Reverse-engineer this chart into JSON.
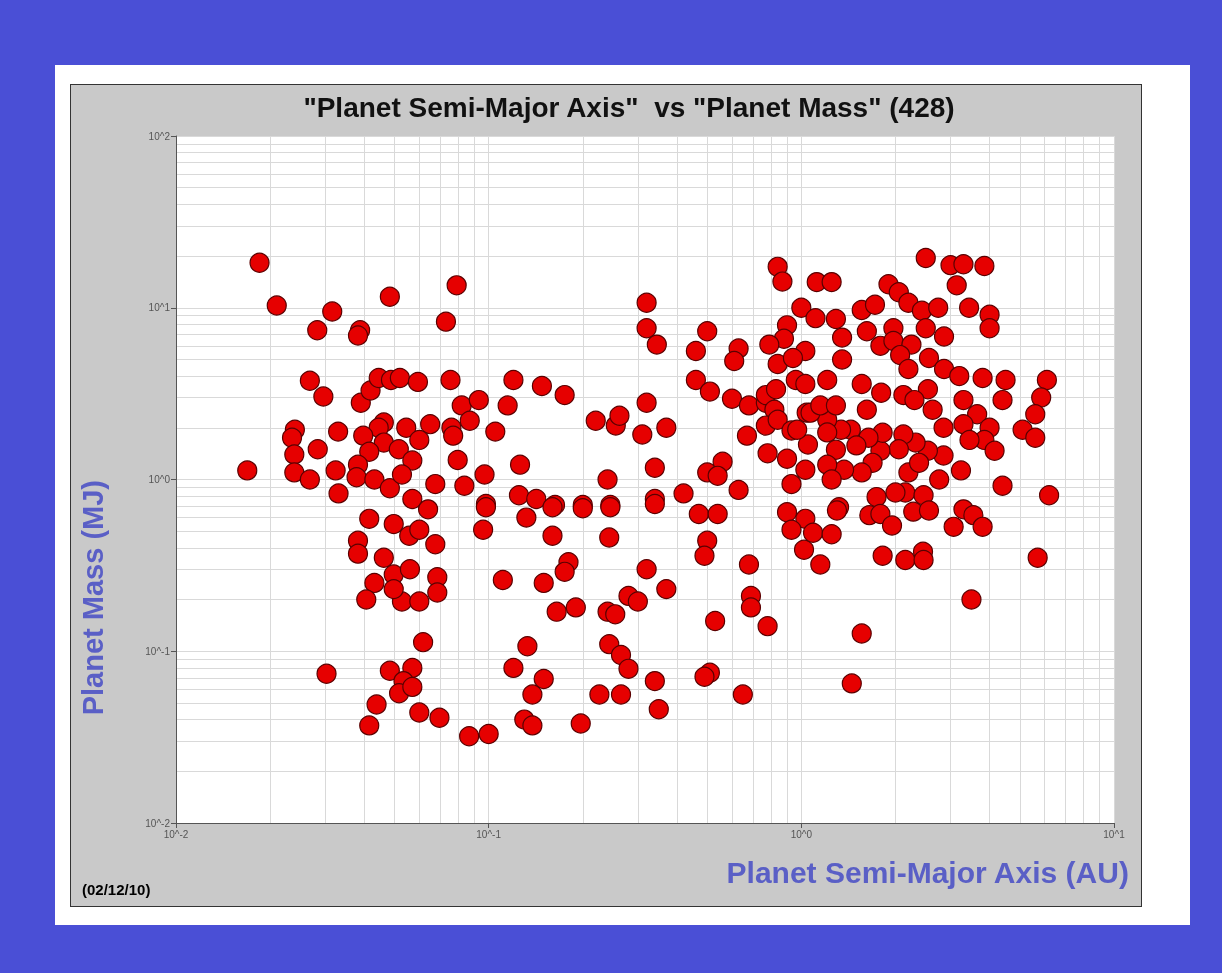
{
  "chart_data": {
    "type": "scatter",
    "title": "\"Planet Semi-Major Axis\"  vs \"Planet Mass\" (428)",
    "xlabel": "Planet Semi-Major Axis (AU)",
    "ylabel": "Planet Mass (MJ)",
    "annotations": [
      "(02/12/10)"
    ],
    "log": "xy",
    "grid": true,
    "marker": "circle",
    "xlim": [
      0.01,
      10
    ],
    "ylim": [
      0.01,
      100
    ],
    "xticks": [
      {
        "value": 0.01,
        "label": "10^-2"
      },
      {
        "value": 0.1,
        "label": "10^-1"
      },
      {
        "value": 1,
        "label": "10^0"
      },
      {
        "value": 10,
        "label": "10^1"
      }
    ],
    "yticks": [
      {
        "value": 0.01,
        "label": "10^-2"
      },
      {
        "value": 0.1,
        "label": "10^-1"
      },
      {
        "value": 1,
        "label": "10^0"
      },
      {
        "value": 10,
        "label": "10^1"
      },
      {
        "value": 100,
        "label": "10^2"
      }
    ],
    "x": [
      0.0185,
      0.021,
      0.0316,
      0.0283,
      0.0388,
      0.0382,
      0.0483,
      0.079,
      0.073,
      0.0268,
      0.0296,
      0.039,
      0.0419,
      0.0445,
      0.0487,
      0.052,
      0.0594,
      0.0755,
      0.12,
      0.082,
      0.093,
      0.087,
      0.115,
      0.105,
      0.024,
      0.0235,
      0.033,
      0.0284,
      0.0462,
      0.0445,
      0.0397,
      0.0462,
      0.0545,
      0.065,
      0.076,
      0.077,
      0.06,
      0.0516,
      0.0415,
      0.057,
      0.0796,
      0.0239,
      0.0239,
      0.0169,
      0.0268,
      0.0324,
      0.0382,
      0.0378,
      0.0431,
      0.0483,
      0.0528,
      0.0675,
      0.0836,
      0.097,
      0.0331,
      0.098,
      0.057,
      0.064,
      0.098,
      0.096,
      0.0415,
      0.0497,
      0.0382,
      0.0382,
      0.0462,
      0.0557,
      0.0675,
      0.06,
      0.0497,
      0.056,
      0.0685,
      0.0685,
      0.0431,
      0.0406,
      0.0528,
      0.06,
      0.0497,
      0.111,
      0.0617,
      0.0303,
      0.0483,
      0.057,
      0.0534,
      0.0517,
      0.057,
      0.0438,
      0.06,
      0.0696,
      0.0415,
      0.0866,
      0.1,
      0.32,
      0.32,
      0.345,
      0.5,
      0.46,
      0.63,
      0.61,
      0.148,
      0.175,
      0.32,
      0.46,
      0.51,
      0.6,
      0.68,
      0.77,
      0.22,
      0.255,
      0.262,
      0.31,
      0.37,
      0.67,
      0.126,
      0.24,
      0.34,
      0.5,
      0.56,
      0.54,
      0.63,
      0.125,
      0.142,
      0.163,
      0.2,
      0.245,
      0.34,
      0.42,
      0.84,
      0.87,
      1.0,
      0.9,
      0.88,
      0.79,
      0.84,
      1.03,
      0.94,
      0.96,
      1.03,
      0.77,
      0.83,
      0.82,
      0.77,
      0.84,
      0.93,
      1.04,
      1.05,
      0.78,
      0.9,
      1.03,
      0.93,
      0.132,
      0.16,
      0.2,
      0.245,
      0.34,
      0.16,
      0.243,
      0.47,
      0.54,
      0.5,
      0.49,
      0.9,
      1.03,
      0.93,
      1.02,
      0.68,
      0.18,
      0.175,
      0.15,
      0.32,
      0.37,
      0.28,
      0.3,
      0.165,
      0.19,
      0.24,
      0.254,
      0.69,
      0.69,
      0.53,
      0.78,
      0.133,
      0.12,
      0.15,
      0.138,
      0.243,
      0.265,
      0.28,
      0.34,
      0.226,
      0.265,
      0.35,
      0.13,
      0.138,
      0.197,
      0.51,
      0.49,
      0.65,
      2.5,
      3.0,
      3.3,
      3.85,
      3.14,
      1.12,
      1.25,
      1.9,
      2.05,
      2.2,
      2.43,
      2.74,
      3.44,
      4.0,
      4.0,
      1.11,
      1.29,
      1.35,
      1.56,
      1.72,
      1.62,
      1.97,
      2.5,
      2.86,
      1.79,
      1.97,
      2.25,
      2.07,
      2.2,
      2.56,
      2.86,
      3.2,
      3.8,
      4.5,
      4.4,
      6.1,
      5.85,
      5.6,
      5.1,
      5.6,
      1.35,
      1.21,
      1.56,
      1.8,
      2.12,
      2.54,
      2.3,
      2.63,
      3.3,
      3.65,
      3.3,
      4.0,
      3.85,
      4.15,
      3.45,
      2.85,
      2.85,
      2.54,
      2.32,
      2.12,
      2.05,
      1.79,
      1.82,
      1.62,
      1.64,
      1.44,
      1.34,
      1.21,
      1.07,
      1.15,
      1.29,
      0.97,
      1.21,
      1.29,
      1.5,
      1.69,
      1.56,
      1.37,
      1.21,
      1.25,
      2.2,
      2.38,
      2.76,
      3.24,
      4.4,
      6.2,
      1.74,
      2.15,
      2.46,
      2.0,
      1.32,
      3.3,
      1.3,
      1.09,
      1.25,
      1.15,
      1.65,
      1.79,
      1.95,
      2.28,
      2.56,
      3.55,
      3.07,
      3.8,
      1.82,
      2.15,
      2.45,
      2.46,
      5.7,
      3.5,
      1.56,
      1.45
    ],
    "series": [
      {
        "color": "#e60000",
        "values": [
          18.3,
          10.3,
          9.5,
          7.4,
          7.4,
          6.9,
          11.6,
          13.5,
          8.3,
          3.76,
          3.04,
          2.8,
          3.3,
          3.9,
          3.8,
          3.9,
          3.7,
          3.8,
          3.8,
          2.7,
          2.9,
          2.2,
          2.7,
          1.9,
          1.95,
          1.75,
          1.9,
          1.5,
          2.15,
          2.0,
          1.8,
          1.64,
          2.0,
          2.1,
          2.0,
          1.8,
          1.7,
          1.5,
          1.45,
          1.29,
          1.3,
          1.4,
          1.1,
          1.13,
          1.0,
          1.13,
          1.22,
          1.03,
          1.0,
          0.89,
          1.07,
          0.94,
          0.92,
          1.07,
          0.83,
          0.72,
          0.77,
          0.67,
          0.69,
          0.51,
          0.59,
          0.55,
          0.44,
          0.37,
          0.35,
          0.47,
          0.42,
          0.51,
          0.28,
          0.3,
          0.27,
          0.22,
          0.25,
          0.2,
          0.195,
          0.195,
          0.23,
          0.26,
          0.113,
          0.074,
          0.077,
          0.08,
          0.067,
          0.057,
          0.062,
          0.049,
          0.044,
          0.041,
          0.037,
          0.032,
          0.033,
          10.7,
          7.6,
          6.1,
          7.3,
          5.6,
          5.8,
          4.9,
          3.5,
          3.1,
          2.8,
          3.8,
          3.25,
          2.95,
          2.7,
          2.8,
          2.2,
          2.06,
          2.35,
          1.83,
          2.0,
          1.8,
          1.22,
          1.0,
          1.17,
          1.1,
          1.27,
          1.05,
          0.87,
          0.81,
          0.77,
          0.71,
          0.71,
          0.71,
          0.77,
          0.83,
          17.3,
          14.2,
          10,
          7.9,
          6.6,
          6.1,
          4.7,
          5.6,
          5.1,
          3.8,
          3.6,
          3.1,
          3.35,
          2.55,
          2.06,
          2.23,
          1.93,
          2.45,
          1.6,
          1.42,
          1.32,
          1.14,
          0.94,
          0.6,
          0.69,
          0.68,
          0.69,
          0.72,
          0.47,
          0.46,
          0.63,
          0.63,
          0.44,
          0.36,
          0.645,
          0.59,
          0.51,
          0.39,
          0.32,
          0.33,
          0.29,
          0.25,
          0.3,
          0.23,
          0.21,
          0.195,
          0.17,
          0.18,
          0.17,
          0.164,
          0.21,
          0.18,
          0.15,
          0.14,
          0.107,
          0.08,
          0.069,
          0.056,
          0.11,
          0.095,
          0.079,
          0.067,
          0.056,
          0.056,
          0.046,
          0.04,
          0.037,
          0.038,
          0.075,
          0.071,
          0.056,
          19.5,
          17.7,
          17.9,
          17.5,
          13.5,
          14.1,
          14.1,
          13.7,
          12.3,
          10.7,
          9.6,
          10,
          10,
          9.1,
          7.6,
          8.7,
          8.6,
          6.7,
          9.7,
          10.4,
          7.3,
          7.6,
          7.6,
          6.8,
          6.0,
          6.4,
          6.1,
          5.3,
          4.4,
          5.1,
          4.4,
          4.0,
          3.9,
          3.8,
          2.9,
          3.8,
          3.0,
          2.4,
          1.95,
          1.75,
          5.0,
          3.8,
          3.6,
          3.2,
          3.1,
          3.35,
          2.9,
          2.55,
          2.9,
          2.4,
          2.1,
          2.0,
          1.7,
          1.47,
          1.7,
          2.0,
          1.38,
          1.47,
          1.64,
          1.83,
          1.5,
          1.47,
          1.87,
          2.55,
          1.75,
          1.95,
          1.95,
          2.23,
          2.45,
          2.7,
          2.7,
          1.95,
          1.88,
          1.49,
          1.58,
          1.25,
          1.1,
          1.14,
          1.22,
          1.0,
          1.1,
          1.25,
          1.0,
          1.13,
          0.92,
          0.81,
          0.79,
          0.84,
          0.81,
          0.84,
          0.69,
          0.67,
          0.66,
          0.49,
          0.48,
          0.32,
          0.62,
          0.63,
          0.54,
          0.65,
          0.66,
          0.62,
          0.53,
          0.53,
          0.36,
          0.34,
          0.38,
          0.34,
          0.35,
          0.2,
          0.127,
          0.065
        ]
      }
    ]
  }
}
